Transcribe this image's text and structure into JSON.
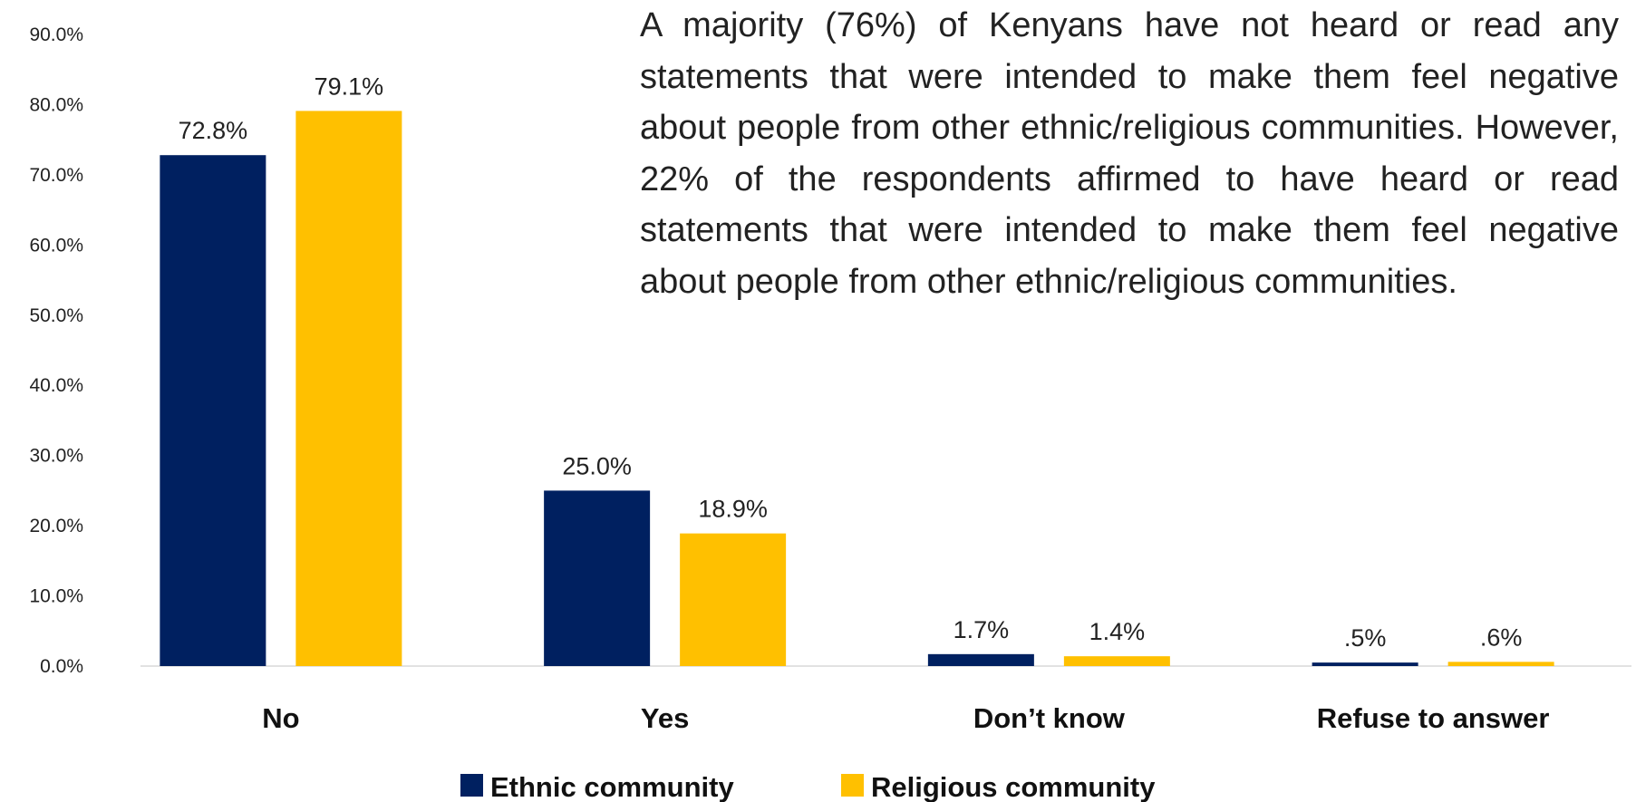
{
  "chart_data": {
    "type": "bar",
    "categories": [
      "No",
      "Yes",
      "Don’t know",
      "Refuse to answer"
    ],
    "series": [
      {
        "name": "Ethnic community",
        "values": [
          72.8,
          25.0,
          1.7,
          0.5
        ],
        "labels": [
          "72.8%",
          "25.0%",
          "1.7%",
          ".5%"
        ],
        "color": "#002060"
      },
      {
        "name": "Religious community",
        "values": [
          79.1,
          18.9,
          1.4,
          0.6
        ],
        "labels": [
          "79.1%",
          "18.9%",
          "1.4%",
          ".6%"
        ],
        "color": "#FFC000"
      }
    ],
    "ylim": [
      0,
      90
    ],
    "yticks": [
      "0.0%",
      "10.0%",
      "20.0%",
      "30.0%",
      "40.0%",
      "50.0%",
      "60.0%",
      "70.0%",
      "80.0%",
      "90.0%"
    ],
    "ytick_values": [
      0,
      10,
      20,
      30,
      40,
      50,
      60,
      70,
      80,
      90
    ],
    "grid": false,
    "legend_position": "bottom",
    "annotation": "A majority (76%) of Kenyans have not heard or read any statements that were intended to make them feel negative about people from  other ethnic/religious communities. However,  22% of the respondents affirmed to have heard or read statements that were intended to make them feel negative about people from other ethnic/religious communities."
  }
}
